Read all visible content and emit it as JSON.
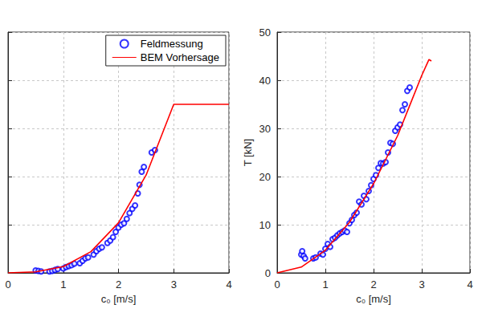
{
  "chart_data": [
    {
      "type": "scatter",
      "x_label": "c₀ [m/s]",
      "xlim": [
        0,
        4
      ],
      "xticks": [
        0,
        1,
        2,
        3,
        4
      ],
      "ylim": [
        0,
        50
      ],
      "yticks": [
        0,
        10,
        20,
        30,
        40,
        50
      ],
      "grid": true,
      "legend": "upper right",
      "tick_labels": "x",
      "series": [
        {
          "name": "Feldmessung",
          "type": "scatter",
          "marker": "circle",
          "color": "#0000ff",
          "x": [
            0.5,
            0.55,
            0.6,
            0.75,
            0.8,
            0.85,
            0.9,
            1.0,
            1.05,
            1.1,
            1.15,
            1.2,
            1.3,
            1.35,
            1.4,
            1.45,
            1.55,
            1.6,
            1.65,
            1.7,
            1.8,
            1.85,
            1.9,
            1.95,
            2.0,
            2.05,
            2.1,
            2.15,
            2.2,
            2.25,
            2.3,
            2.35,
            2.38,
            2.42,
            2.46,
            2.6,
            2.66
          ],
          "values": [
            0.5,
            0.4,
            0.3,
            0.3,
            0.4,
            0.6,
            0.8,
            0.9,
            1.2,
            1.4,
            1.6,
            1.9,
            2.0,
            2.5,
            3.0,
            3.2,
            3.8,
            4.5,
            5.0,
            5.3,
            6.2,
            6.7,
            7.4,
            8.5,
            9.4,
            10.0,
            10.3,
            11.2,
            12.4,
            13.3,
            14.0,
            16.5,
            18.3,
            21.0,
            22.0,
            25.0,
            25.5
          ]
        },
        {
          "name": "BEM Vorhersage",
          "type": "line",
          "line_style": "solid",
          "color": "#ff0000",
          "x": [
            0,
            0.5,
            1.0,
            1.5,
            2.0,
            2.5,
            3.0,
            4.0
          ],
          "values": [
            0,
            0.2,
            1.3,
            4.4,
            10.4,
            20.3,
            35,
            35
          ]
        }
      ]
    },
    {
      "type": "scatter",
      "x_label": "c₀ [m/s]",
      "y_label": "T [kN]",
      "xlim": [
        0,
        4
      ],
      "xticks": [
        0,
        1,
        2,
        3,
        4
      ],
      "ylim": [
        0,
        50
      ],
      "yticks": [
        0,
        10,
        20,
        30,
        40,
        50
      ],
      "grid": true,
      "series": [
        {
          "name": "Feldmessung",
          "type": "scatter",
          "marker": "circle",
          "color": "#0000ff",
          "x": [
            0.5,
            0.52,
            0.55,
            0.58,
            0.75,
            0.8,
            0.9,
            0.95,
            1.0,
            1.05,
            1.1,
            1.15,
            1.2,
            1.25,
            1.3,
            1.35,
            1.4,
            1.45,
            1.5,
            1.55,
            1.6,
            1.65,
            1.7,
            1.75,
            1.8,
            1.85,
            1.9,
            1.95,
            2.0,
            2.05,
            2.1,
            2.15,
            2.2,
            2.25,
            2.3,
            2.35,
            2.4,
            2.45,
            2.5,
            2.55,
            2.6,
            2.65,
            2.7,
            2.75
          ],
          "values": [
            3.8,
            4.5,
            3.5,
            3.0,
            3.0,
            3.2,
            4.0,
            3.8,
            5.0,
            6.0,
            5.4,
            7.0,
            7.3,
            7.8,
            8.2,
            8.5,
            8.8,
            8.5,
            10.3,
            11.0,
            12.0,
            12.5,
            14.8,
            14.2,
            16.0,
            15.3,
            17.0,
            18.2,
            19.5,
            20.3,
            21.8,
            22.8,
            22.7,
            23.0,
            25.0,
            27.0,
            26.8,
            29.5,
            30.2,
            30.8,
            33.8,
            35.0,
            37.8,
            38.5
          ]
        },
        {
          "name": "BEM Vorhersage",
          "type": "line",
          "line_style": "solid",
          "color": "#ff0000",
          "x": [
            0,
            0.5,
            1.0,
            1.5,
            2.0,
            2.5,
            3.0,
            3.15,
            3.2
          ],
          "values": [
            0,
            1.2,
            4.7,
            10.5,
            18.5,
            28.5,
            41,
            44.3,
            44
          ]
        }
      ]
    }
  ]
}
